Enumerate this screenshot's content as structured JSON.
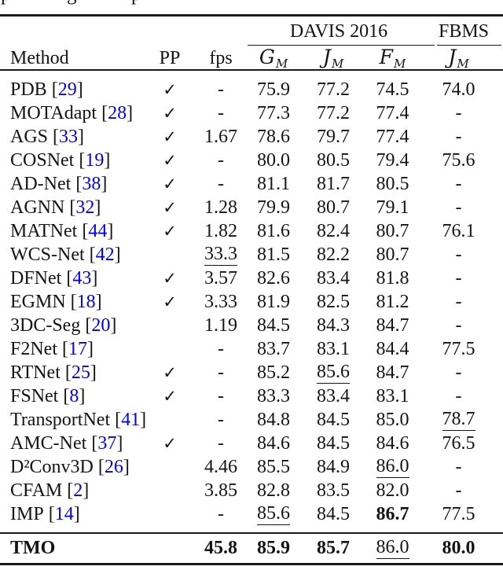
{
  "page": {
    "background_color": "#ffffff",
    "text_color": "#141414",
    "citation_color": "#0000ee",
    "rule_color": "#1a1a1a"
  },
  "top_fragments": [
    {
      "char": "p"
    },
    {
      "char": "g"
    },
    {
      "char": "p"
    }
  ],
  "table": {
    "group_headers": [
      {
        "label": "DAVIS 2016"
      },
      {
        "label": "FBMS"
      }
    ],
    "columns": {
      "method": "Method",
      "pp": "PP",
      "fps": "fps"
    },
    "metrics": [
      {
        "letter": "G",
        "sub": "M"
      },
      {
        "letter": "J",
        "sub": "M"
      },
      {
        "letter": "F",
        "sub": "M"
      },
      {
        "letter": "J",
        "sub": "M"
      }
    ],
    "checkmark": "✓",
    "cite_format": {
      "open": "[",
      "close": "]"
    },
    "rows": [
      {
        "method": "PDB",
        "cite": "29",
        "pp": true,
        "fps": "-",
        "g": "75.9",
        "j": "77.2",
        "f": "74.5",
        "fbms": "74.0",
        "u": [],
        "b": []
      },
      {
        "method": "MOTAdapt",
        "cite": "28",
        "pp": true,
        "fps": "-",
        "g": "77.3",
        "j": "77.2",
        "f": "77.4",
        "fbms": "-",
        "u": [],
        "b": []
      },
      {
        "method": "AGS",
        "cite": "33",
        "pp": true,
        "fps": "1.67",
        "g": "78.6",
        "j": "79.7",
        "f": "77.4",
        "fbms": "-",
        "u": [],
        "b": []
      },
      {
        "method": "COSNet",
        "cite": "19",
        "pp": true,
        "fps": "-",
        "g": "80.0",
        "j": "80.5",
        "f": "79.4",
        "fbms": "75.6",
        "u": [],
        "b": []
      },
      {
        "method": "AD-Net",
        "cite": "38",
        "pp": true,
        "fps": "-",
        "g": "81.1",
        "j": "81.7",
        "f": "80.5",
        "fbms": "-",
        "u": [],
        "b": []
      },
      {
        "method": "AGNN",
        "cite": "32",
        "pp": true,
        "fps": "1.28",
        "g": "79.9",
        "j": "80.7",
        "f": "79.1",
        "fbms": "-",
        "u": [],
        "b": []
      },
      {
        "method": "MATNet",
        "cite": "44",
        "pp": true,
        "fps": "1.82",
        "g": "81.6",
        "j": "82.4",
        "f": "80.7",
        "fbms": "76.1",
        "u": [],
        "b": []
      },
      {
        "method": "WCS-Net",
        "cite": "42",
        "pp": false,
        "fps": "33.3",
        "g": "81.5",
        "j": "82.2",
        "f": "80.7",
        "fbms": "-",
        "u": [
          "fps"
        ],
        "b": []
      },
      {
        "method": "DFNet",
        "cite": "43",
        "pp": true,
        "fps": "3.57",
        "g": "82.6",
        "j": "83.4",
        "f": "81.8",
        "fbms": "-",
        "u": [],
        "b": []
      },
      {
        "method": "EGMN",
        "cite": "18",
        "pp": true,
        "fps": "3.33",
        "g": "81.9",
        "j": "82.5",
        "f": "81.2",
        "fbms": "-",
        "u": [],
        "b": []
      },
      {
        "method": "3DC-Seg",
        "cite": "20",
        "pp": false,
        "fps": "1.19",
        "g": "84.5",
        "j": "84.3",
        "f": "84.7",
        "fbms": "-",
        "u": [],
        "b": []
      },
      {
        "method": "F2Net",
        "cite": "17",
        "pp": false,
        "fps": "-",
        "g": "83.7",
        "j": "83.1",
        "f": "84.4",
        "fbms": "77.5",
        "u": [],
        "b": []
      },
      {
        "method": "RTNet",
        "cite": "25",
        "pp": true,
        "fps": "-",
        "g": "85.2",
        "j": "85.6",
        "f": "84.7",
        "fbms": "-",
        "u": [
          "j"
        ],
        "b": []
      },
      {
        "method": "FSNet",
        "cite": "8",
        "pp": true,
        "fps": "-",
        "g": "83.3",
        "j": "83.4",
        "f": "83.1",
        "fbms": "-",
        "u": [],
        "b": []
      },
      {
        "method": "TransportNet",
        "cite": "41",
        "pp": false,
        "fps": "-",
        "g": "84.8",
        "j": "84.5",
        "f": "85.0",
        "fbms": "78.7",
        "u": [
          "fbms"
        ],
        "b": []
      },
      {
        "method": "AMC-Net",
        "cite": "37",
        "pp": true,
        "fps": "-",
        "g": "84.6",
        "j": "84.5",
        "f": "84.6",
        "fbms": "76.5",
        "u": [],
        "b": []
      },
      {
        "method": "D²Conv3D",
        "cite": "26",
        "pp": false,
        "fps": "4.46",
        "g": "85.5",
        "j": "84.9",
        "f": "86.0",
        "fbms": "-",
        "u": [
          "f"
        ],
        "b": []
      },
      {
        "method": "CFAM",
        "cite": "2",
        "pp": false,
        "fps": "3.85",
        "g": "82.8",
        "j": "83.5",
        "f": "82.0",
        "fbms": "-",
        "u": [],
        "b": []
      },
      {
        "method": "IMP",
        "cite": "14",
        "pp": false,
        "fps": "-",
        "g": "85.6",
        "j": "84.5",
        "f": "86.7",
        "fbms": "77.5",
        "u": [
          "g"
        ],
        "b": [
          "f"
        ]
      }
    ],
    "footer_row": {
      "method": "TMO",
      "cite": null,
      "pp": false,
      "fps": "45.8",
      "g": "85.9",
      "j": "85.7",
      "f": "86.0",
      "fbms": "80.0",
      "u": [
        "f"
      ],
      "b": [
        "method",
        "fps",
        "g",
        "j",
        "fbms"
      ]
    }
  }
}
